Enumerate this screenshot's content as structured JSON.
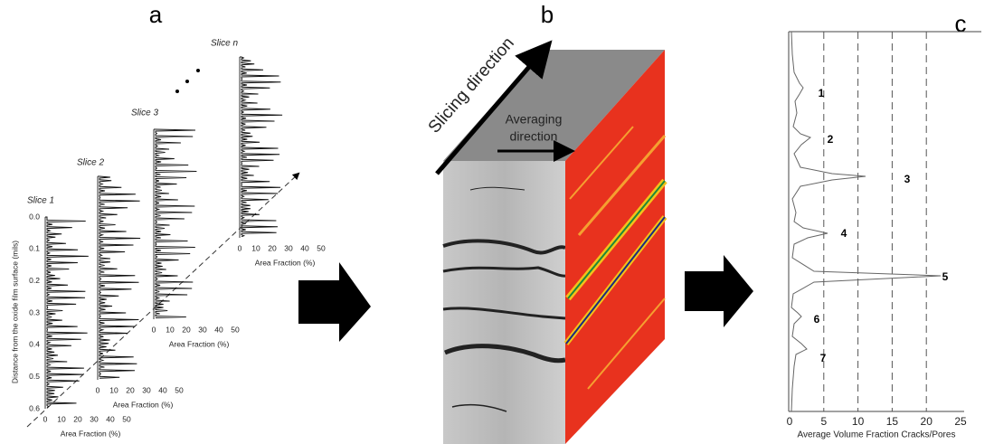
{
  "panel_a": {
    "label": "a",
    "y_axis_label": "Distance from the oxide film surface (mils)",
    "y_ticks": [
      "0.0",
      "0.1",
      "0.2",
      "0.3",
      "0.4",
      "0.5",
      "0.6"
    ],
    "slices": [
      {
        "name": "Slice 1",
        "x_label": "Area Fraction (%)",
        "x_ticks": [
          0,
          10,
          20,
          30,
          40,
          50
        ]
      },
      {
        "name": "Slice 2",
        "x_label": "Area Fraction (%)",
        "x_ticks": [
          0,
          10,
          20,
          30,
          40,
          50
        ]
      },
      {
        "name": "Slice 3",
        "x_label": "Area Fraction (%)",
        "x_ticks": [
          0,
          10,
          20,
          30,
          40,
          50
        ]
      },
      {
        "name": "Slice n",
        "x_label": "Area Fraction (%)",
        "x_ticks": [
          0,
          10,
          20,
          30,
          40,
          50
        ]
      }
    ]
  },
  "panel_b": {
    "label": "b",
    "slicing": "Slicing direction",
    "averaging": [
      "Averaging",
      "direction"
    ]
  },
  "panel_c": {
    "label": "c",
    "x_label": "Average Volume Fraction Cracks/Pores",
    "x_ticks": [
      0,
      5,
      10,
      15,
      20,
      25
    ],
    "peaks": [
      "1",
      "2",
      "3",
      "4",
      "5",
      "6",
      "7"
    ]
  }
}
